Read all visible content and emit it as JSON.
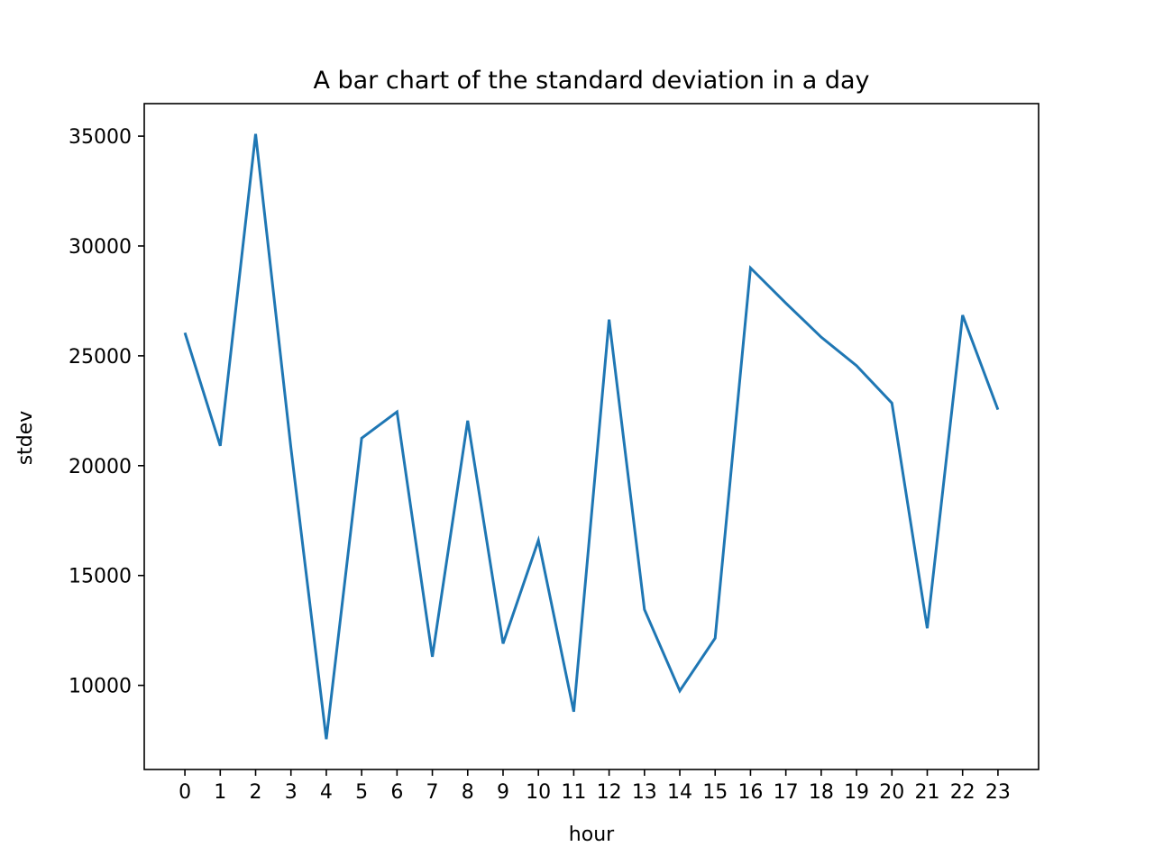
{
  "chart_data": {
    "type": "line",
    "title": "A bar chart of the standard deviation in a day",
    "xlabel": "hour",
    "ylabel": "stdev",
    "x": [
      0,
      1,
      2,
      3,
      4,
      5,
      6,
      7,
      8,
      9,
      10,
      11,
      12,
      13,
      14,
      15,
      16,
      17,
      18,
      19,
      20,
      21,
      22,
      23
    ],
    "x_tick_labels": [
      "0",
      "1",
      "2",
      "3",
      "4",
      "5",
      "6",
      "7",
      "8",
      "9",
      "10",
      "11",
      "12",
      "13",
      "14",
      "15",
      "16",
      "17",
      "18",
      "19",
      "20",
      "21",
      "22",
      "23"
    ],
    "series": [
      {
        "color": "#1f77b4",
        "values": [
          26050,
          20900,
          35100,
          20800,
          7550,
          21250,
          22450,
          11300,
          22050,
          11900,
          16600,
          8800,
          26650,
          13450,
          9750,
          12150,
          29000,
          27400,
          25850,
          24550,
          22850,
          12600,
          26850,
          22550
        ]
      }
    ],
    "y_ticks": [
      10000,
      15000,
      20000,
      25000,
      30000,
      35000
    ],
    "y_tick_labels": [
      "10000",
      "15000",
      "20000",
      "25000",
      "30000",
      "35000"
    ],
    "xlim": [
      -1.15,
      24.15
    ],
    "ylim": [
      6170,
      36480
    ],
    "grid": false,
    "legend": "none"
  }
}
